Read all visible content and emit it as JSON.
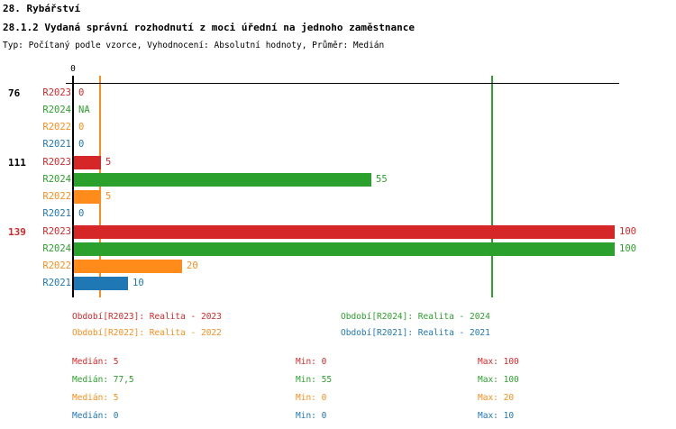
{
  "header": {
    "title": "28. Rybářství",
    "subtitle": "28.1.2 Vydaná správní rozhodnutí z moci úřední na jednoho zaměstnance",
    "meta": "Typ: Počítaný podle vzorce, Vyhodnocení: Absolutní hodnoty, Průměr: Medián"
  },
  "chart_data": {
    "type": "bar",
    "orientation": "horizontal",
    "axis_tick_label": "0",
    "xlim": [
      0,
      100
    ],
    "grid": false,
    "categories": [
      "76",
      "111",
      "139"
    ],
    "series": [
      {
        "id": "R2023",
        "label": "R2023",
        "color": "#d62728"
      },
      {
        "id": "R2024",
        "label": "R2024",
        "color": "#2ca02c"
      },
      {
        "id": "R2022",
        "label": "R2022",
        "color": "#ff8c1a"
      },
      {
        "id": "R2021",
        "label": "R2021",
        "color": "#1f77b4"
      }
    ],
    "groups": [
      {
        "label": "76",
        "label_color": "#000000",
        "rows": [
          {
            "series": "R2023",
            "value": 0,
            "display": "0"
          },
          {
            "series": "R2024",
            "value": null,
            "display": "NA"
          },
          {
            "series": "R2022",
            "value": 0,
            "display": "0"
          },
          {
            "series": "R2021",
            "value": 0,
            "display": "0"
          }
        ]
      },
      {
        "label": "111",
        "label_color": "#000000",
        "rows": [
          {
            "series": "R2023",
            "value": 5,
            "display": "5"
          },
          {
            "series": "R2024",
            "value": 55,
            "display": "55"
          },
          {
            "series": "R2022",
            "value": 5,
            "display": "5"
          },
          {
            "series": "R2021",
            "value": 0,
            "display": "0"
          }
        ]
      },
      {
        "label": "139",
        "label_color": "#d62728",
        "rows": [
          {
            "series": "R2023",
            "value": 100,
            "display": "100"
          },
          {
            "series": "R2024",
            "value": 100,
            "display": "100"
          },
          {
            "series": "R2022",
            "value": 20,
            "display": "20"
          },
          {
            "series": "R2021",
            "value": 10,
            "display": "10"
          }
        ]
      }
    ],
    "stats_labels": {
      "median": "Medián",
      "min": "Min",
      "max": "Max"
    },
    "stats": [
      {
        "series": "R2023",
        "median": "5",
        "median_value": 5,
        "min": "0",
        "max": "100"
      },
      {
        "series": "R2024",
        "median": "77,5",
        "median_value": 77.5,
        "min": "55",
        "max": "100"
      },
      {
        "series": "R2022",
        "median": "5",
        "median_value": 5,
        "min": "0",
        "max": "20"
      },
      {
        "series": "R2021",
        "median": "0",
        "median_value": 0,
        "min": "0",
        "max": "10"
      }
    ]
  },
  "legend": {
    "items": [
      {
        "series": "R2023",
        "key": "Období[R2023]",
        "value": "Realita - 2023"
      },
      {
        "series": "R2024",
        "key": "Období[R2024]",
        "value": "Realita - 2024"
      },
      {
        "series": "R2022",
        "key": "Období[R2022]",
        "value": "Realita - 2022"
      },
      {
        "series": "R2021",
        "key": "Období[R2021]",
        "value": "Realita - 2021"
      }
    ]
  }
}
